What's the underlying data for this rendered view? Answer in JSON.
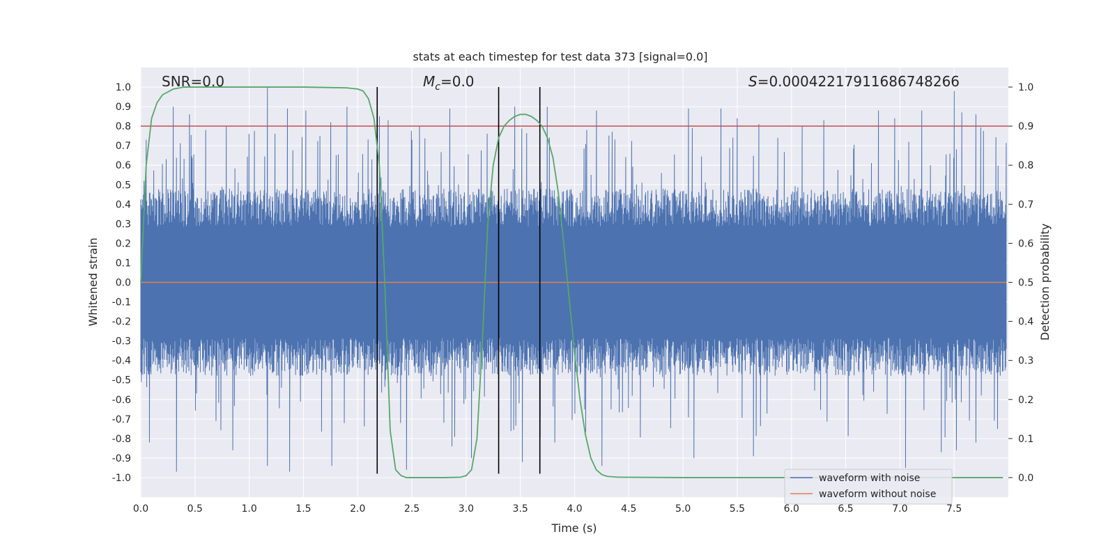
{
  "chart_data": {
    "type": "line",
    "title": "stats at each timestep for test data 373 [signal=0.0]",
    "xlabel": "Time (s)",
    "ylabel": "Whitened strain",
    "ylabel_right": "Detection probability",
    "xlim": [
      0.0,
      8.0
    ],
    "ylim": [
      -1.1,
      1.1
    ],
    "ylim_right": [
      -0.05,
      1.05
    ],
    "x_ticks": [
      0.0,
      0.5,
      1.0,
      1.5,
      2.0,
      2.5,
      3.0,
      3.5,
      4.0,
      4.5,
      5.0,
      5.5,
      6.0,
      6.5,
      7.0,
      7.5
    ],
    "x_tick_labels": [
      "0.0",
      "0.5",
      "1.0",
      "1.5",
      "2.0",
      "2.5",
      "3.0",
      "3.5",
      "4.0",
      "4.5",
      "5.0",
      "5.5",
      "6.0",
      "6.5",
      "7.0",
      "7.5"
    ],
    "y_ticks": [
      1.0,
      0.9,
      0.8,
      0.7,
      0.6,
      0.5,
      0.4,
      0.3,
      0.2,
      0.1,
      0.0,
      -0.1,
      -0.2,
      -0.3,
      -0.4,
      -0.5,
      -0.6,
      -0.7,
      -0.8,
      -0.9,
      -1.0
    ],
    "y_tick_labels": [
      "1.0",
      "0.9",
      "0.8",
      "0.7",
      "0.6",
      "0.5",
      "0.4",
      "0.3",
      "0.2",
      "0.1",
      "0.0",
      "-0.1",
      "-0.2",
      "-0.3",
      "-0.4",
      "-0.5",
      "-0.6",
      "-0.7",
      "-0.8",
      "-0.9",
      "-1.0"
    ],
    "y_right_ticks": [
      1.0,
      0.9,
      0.8,
      0.7,
      0.6,
      0.5,
      0.4,
      0.3,
      0.2,
      0.1,
      0.0
    ],
    "y_right_tick_labels": [
      "1.0",
      "0.9",
      "0.8",
      "0.7",
      "0.6",
      "0.5",
      "0.4",
      "0.3",
      "0.2",
      "0.1",
      "0.0"
    ],
    "annotations": {
      "snr": "SNR=0.0",
      "mc_symbol": "M",
      "mc_subscript": "c",
      "mc_value": "=0.0",
      "s_symbol": "S",
      "s_value": "=0.00042217911686748266"
    },
    "threshold": {
      "value": 0.8,
      "color": "#c44e52"
    },
    "vertical_lines": [
      2.18,
      3.3,
      3.68
    ],
    "series": [
      {
        "name": "waveform with noise",
        "color": "#4c72b0",
        "envelope": {
          "num_samples": 1600,
          "typical_amplitude": 0.38,
          "spike_up_values": [
            0.73,
            0.9,
            0.86,
            0.78,
            0.76,
            1.0,
            0.89,
            0.88,
            0.75,
            0.82,
            0.9,
            0.85,
            0.83,
            0.73,
            0.89,
            0.9,
            0.9,
            0.88,
            0.89,
            0.89,
            0.84,
            0.81,
            0.8,
            0.83,
            0.88,
            0.84,
            0.88,
            0.98,
            0.87,
            0.86
          ],
          "spike_up_times": [
            0.05,
            0.3,
            0.45,
            0.6,
            1.0,
            1.17,
            1.35,
            1.52,
            1.65,
            1.75,
            1.9,
            2.2,
            2.28,
            2.5,
            2.85,
            3.45,
            3.75,
            4.2,
            5.05,
            5.35,
            5.5,
            5.7,
            6.1,
            6.3,
            6.8,
            6.95,
            7.2,
            7.5,
            7.57,
            7.7
          ],
          "spike_down_values": [
            -0.82,
            -0.97,
            -0.86,
            -0.94,
            -0.97,
            -0.94,
            -0.96,
            -0.84,
            -0.9,
            -0.92,
            -0.82,
            -0.94,
            -0.9,
            -0.89,
            -0.95,
            -0.87,
            -0.86,
            -0.82
          ],
          "spike_down_times": [
            0.08,
            0.33,
            0.85,
            1.17,
            1.37,
            1.76,
            2.45,
            2.87,
            3.05,
            3.52,
            3.82,
            4.25,
            5.1,
            5.65,
            7.05,
            7.38,
            7.52,
            7.7
          ]
        }
      },
      {
        "name": "waveform without noise",
        "color": "#dd8452",
        "values_constant": 0.0
      },
      {
        "name": "detection probability",
        "color": "#55a868",
        "axis": "right",
        "x": [
          0.0,
          0.05,
          0.1,
          0.15,
          0.2,
          0.3,
          0.4,
          0.6,
          1.0,
          1.5,
          1.9,
          2.0,
          2.05,
          2.1,
          2.15,
          2.2,
          2.25,
          2.3,
          2.35,
          2.4,
          2.45,
          2.5,
          2.8,
          2.95,
          3.0,
          3.05,
          3.1,
          3.15,
          3.2,
          3.25,
          3.3,
          3.35,
          3.4,
          3.45,
          3.5,
          3.55,
          3.6,
          3.65,
          3.7,
          3.75,
          3.8,
          3.85,
          3.9,
          3.95,
          4.0,
          4.05,
          4.1,
          4.15,
          4.2,
          4.25,
          4.3,
          4.4,
          5.0,
          6.0,
          7.0,
          7.95
        ],
        "y": [
          0.5,
          0.8,
          0.92,
          0.96,
          0.98,
          0.995,
          1.0,
          1.0,
          1.0,
          1.0,
          0.998,
          0.995,
          0.99,
          0.97,
          0.92,
          0.8,
          0.5,
          0.12,
          0.02,
          0.005,
          0.0,
          0.0,
          0.0,
          0.001,
          0.005,
          0.02,
          0.1,
          0.35,
          0.65,
          0.8,
          0.87,
          0.9,
          0.915,
          0.925,
          0.93,
          0.93,
          0.925,
          0.915,
          0.9,
          0.87,
          0.82,
          0.73,
          0.6,
          0.46,
          0.32,
          0.2,
          0.11,
          0.05,
          0.02,
          0.008,
          0.003,
          0.001,
          0.0,
          0.0,
          0.0,
          0.0
        ]
      }
    ],
    "legend": {
      "placement": "lower-right",
      "entries": [
        {
          "label": "waveform with noise",
          "color": "#4c72b0"
        },
        {
          "label": "waveform without noise",
          "color": "#dd8452"
        }
      ]
    }
  }
}
